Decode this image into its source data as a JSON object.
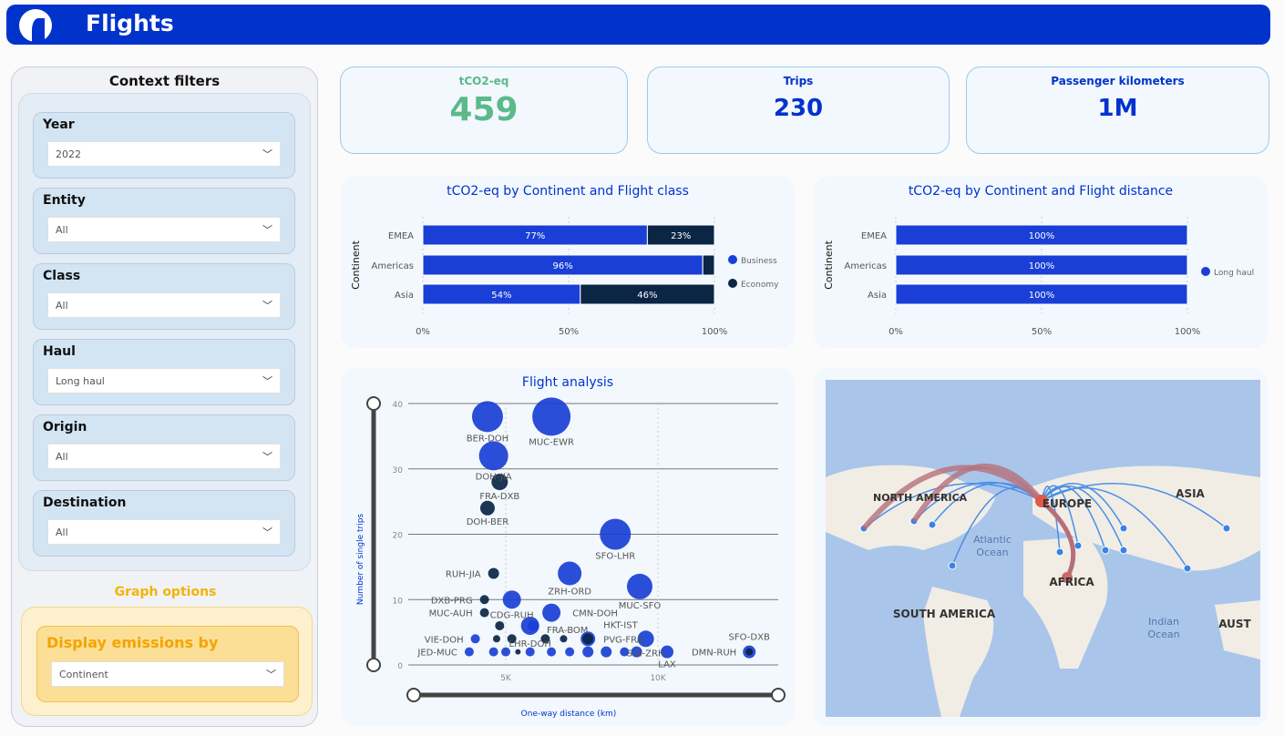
{
  "header": {
    "title": "Flights"
  },
  "filters": {
    "title": "Context filters",
    "items": [
      {
        "label": "Year",
        "value": "2022"
      },
      {
        "label": "Entity",
        "value": "All"
      },
      {
        "label": "Class",
        "value": "All"
      },
      {
        "label": "Haul",
        "value": "Long haul"
      },
      {
        "label": "Origin",
        "value": "All"
      },
      {
        "label": "Destination",
        "value": "All"
      }
    ]
  },
  "graph_options": {
    "title": "Graph options",
    "label": "Display emissions by",
    "value": "Continent"
  },
  "kpis": [
    {
      "title": "tCO2-eq",
      "value": "459"
    },
    {
      "title": "Trips",
      "value": "230"
    },
    {
      "title": "Passenger kilometers",
      "value": "1M"
    }
  ],
  "colors": {
    "business": "#1a3fd6",
    "economy": "#0b2545",
    "green": "#5bb98b"
  },
  "chart_data": [
    {
      "type": "bar",
      "title": "tCO2-eq by Continent and Flight class",
      "ylabel": "Continent",
      "categories": [
        "EMEA",
        "Americas",
        "Asia"
      ],
      "series": [
        {
          "name": "Business",
          "values": [
            77,
            96,
            54
          ]
        },
        {
          "name": "Economy",
          "values": [
            23,
            4,
            46
          ]
        }
      ],
      "labels": [
        [
          "77%",
          "23%"
        ],
        [
          "96%",
          ""
        ],
        [
          "54%",
          "46%"
        ]
      ],
      "xticks": [
        "0%",
        "50%",
        "100%"
      ]
    },
    {
      "type": "bar",
      "title": "tCO2-eq by Continent and Flight distance",
      "ylabel": "Continent",
      "categories": [
        "EMEA",
        "Americas",
        "Asia"
      ],
      "series": [
        {
          "name": "Long haul",
          "values": [
            100,
            100,
            100
          ]
        }
      ],
      "labels": [
        [
          "100%"
        ],
        [
          "100%"
        ],
        [
          "100%"
        ]
      ],
      "xticks": [
        "0%",
        "50%",
        "100%"
      ]
    },
    {
      "type": "scatter",
      "title": "Flight analysis",
      "xlabel": "One-way distance (km)",
      "ylabel": "Number of single trips",
      "xlim": [
        2000,
        14000
      ],
      "ylim": [
        0,
        40
      ],
      "xticks": [
        {
          "v": 5000,
          "l": "5K"
        },
        {
          "v": 10000,
          "l": "10K"
        }
      ],
      "yticks": [
        0,
        10,
        20,
        30,
        40
      ],
      "points": [
        {
          "l": "BER-DOH",
          "x": 4400,
          "y": 38,
          "s": 17,
          "c": "b"
        },
        {
          "l": "MUC-EWR",
          "x": 6500,
          "y": 38,
          "s": 21,
          "c": "b"
        },
        {
          "l": "DOH-JIA",
          "x": 4600,
          "y": 32,
          "s": 16,
          "c": "b"
        },
        {
          "l": "FRA-DXB",
          "x": 4800,
          "y": 28,
          "s": 9,
          "c": "e"
        },
        {
          "l": "DOH-BER",
          "x": 4400,
          "y": 24,
          "s": 8,
          "c": "e"
        },
        {
          "l": "SFO-LHR",
          "x": 8600,
          "y": 20,
          "s": 17,
          "c": "b"
        },
        {
          "l": "RUH-JIA",
          "x": 4600,
          "y": 14,
          "s": 6,
          "c": "e"
        },
        {
          "l": "ZRH-ORD",
          "x": 7100,
          "y": 14,
          "s": 13,
          "c": "b"
        },
        {
          "l": "CDG-RUH",
          "x": 5200,
          "y": 10,
          "s": 10,
          "c": "b"
        },
        {
          "l": "DXB-PRG",
          "x": 4300,
          "y": 10,
          "s": 5,
          "c": "e"
        },
        {
          "l": "MUC-SFO",
          "x": 9400,
          "y": 12,
          "s": 14,
          "c": "b"
        },
        {
          "l": "MUC-AUH",
          "x": 4300,
          "y": 8,
          "s": 5,
          "c": "e"
        },
        {
          "l": "LHR-DOH",
          "x": 5800,
          "y": 6,
          "s": 10,
          "c": "b"
        },
        {
          "l": "CMN-DOH",
          "x": 6500,
          "y": 8,
          "s": 10,
          "c": "b"
        },
        {
          "l": "FRA-BOM",
          "x": 5900,
          "y": 6,
          "s": 6,
          "c": "b"
        },
        {
          "l": "HKT-IST",
          "x": 7700,
          "y": 4,
          "s": 8,
          "c": "b"
        },
        {
          "l": "VIE-DOH",
          "x": 4000,
          "y": 4,
          "s": 5,
          "c": "b"
        },
        {
          "l": "JED-MUC",
          "x": 3800,
          "y": 2,
          "s": 5,
          "c": "b"
        },
        {
          "l": "PVG-FRA",
          "x": 7700,
          "y": 4,
          "s": 6,
          "c": "e"
        },
        {
          "l": "SIN-ZRH",
          "x": 9600,
          "y": 4,
          "s": 9,
          "c": "b"
        },
        {
          "l": "LAX",
          "x": 10300,
          "y": 2,
          "s": 7,
          "c": "b"
        },
        {
          "l": "SFO-DXB",
          "x": 13000,
          "y": 2,
          "s": 7,
          "c": "b"
        },
        {
          "l": "DMN-RUH",
          "x": 13000,
          "y": 2,
          "s": 4,
          "c": "e"
        },
        {
          "l": "",
          "x": 4700,
          "y": 4,
          "s": 4,
          "c": "e"
        },
        {
          "l": "",
          "x": 5200,
          "y": 4,
          "s": 5,
          "c": "e"
        },
        {
          "l": "",
          "x": 6300,
          "y": 4,
          "s": 5,
          "c": "e"
        },
        {
          "l": "",
          "x": 6900,
          "y": 4,
          "s": 4,
          "c": "e"
        },
        {
          "l": "",
          "x": 4800,
          "y": 6,
          "s": 5,
          "c": "e"
        },
        {
          "l": "",
          "x": 4600,
          "y": 2,
          "s": 5,
          "c": "b"
        },
        {
          "l": "",
          "x": 5000,
          "y": 2,
          "s": 5,
          "c": "b"
        },
        {
          "l": "",
          "x": 5800,
          "y": 2,
          "s": 5,
          "c": "b"
        },
        {
          "l": "",
          "x": 6500,
          "y": 2,
          "s": 5,
          "c": "b"
        },
        {
          "l": "",
          "x": 7100,
          "y": 2,
          "s": 5,
          "c": "b"
        },
        {
          "l": "",
          "x": 7700,
          "y": 2,
          "s": 6,
          "c": "b"
        },
        {
          "l": "",
          "x": 8300,
          "y": 2,
          "s": 6,
          "c": "b"
        },
        {
          "l": "",
          "x": 8900,
          "y": 2,
          "s": 5,
          "c": "b"
        },
        {
          "l": "",
          "x": 9300,
          "y": 2,
          "s": 6,
          "c": "b"
        },
        {
          "l": "",
          "x": 5400,
          "y": 2,
          "s": 3,
          "c": "e"
        }
      ]
    }
  ],
  "map": {
    "labels": [
      "NORTH AMERICA",
      "EUROPE",
      "ASIA",
      "Atlantic Ocean",
      "SOUTH AMERICA",
      "AFRICA",
      "Indian Ocean",
      "AUST"
    ]
  }
}
